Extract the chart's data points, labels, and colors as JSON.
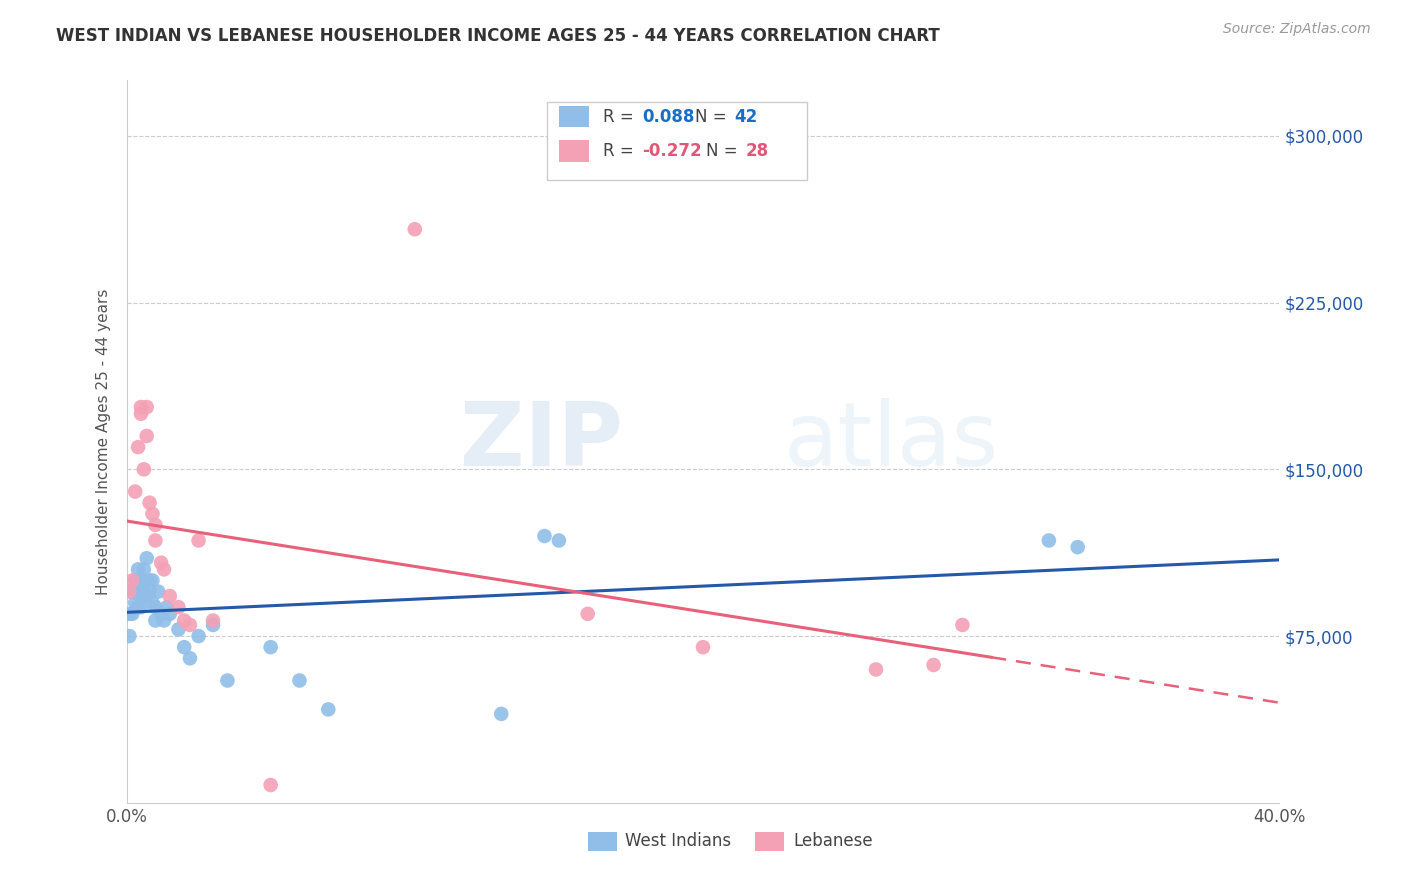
{
  "title": "WEST INDIAN VS LEBANESE HOUSEHOLDER INCOME AGES 25 - 44 YEARS CORRELATION CHART",
  "source": "Source: ZipAtlas.com",
  "ylabel": "Householder Income Ages 25 - 44 years",
  "legend_blue_label": "West Indians",
  "legend_pink_label": "Lebanese",
  "xmin": 0.0,
  "xmax": 0.4,
  "ymin": 0,
  "ymax": 325000,
  "yticks": [
    75000,
    150000,
    225000,
    300000
  ],
  "ytick_labels": [
    "$75,000",
    "$150,000",
    "$225,000",
    "$300,000"
  ],
  "watermark_zip": "ZIP",
  "watermark_atlas": "atlas",
  "blue_color": "#90BEE8",
  "pink_color": "#F4A0B5",
  "blue_line_color": "#2558A8",
  "pink_line_color": "#E8607A",
  "blue_r": "0.088",
  "blue_n": "42",
  "pink_r": "-0.272",
  "pink_n": "28",
  "west_indians_x": [
    0.001,
    0.001,
    0.002,
    0.002,
    0.003,
    0.003,
    0.004,
    0.004,
    0.004,
    0.005,
    0.005,
    0.005,
    0.006,
    0.006,
    0.007,
    0.007,
    0.007,
    0.008,
    0.008,
    0.009,
    0.009,
    0.01,
    0.01,
    0.011,
    0.012,
    0.013,
    0.014,
    0.015,
    0.018,
    0.02,
    0.022,
    0.025,
    0.03,
    0.035,
    0.05,
    0.06,
    0.07,
    0.13,
    0.145,
    0.15,
    0.32,
    0.33
  ],
  "west_indians_y": [
    85000,
    75000,
    95000,
    85000,
    90000,
    100000,
    105000,
    95000,
    88000,
    100000,
    93000,
    88000,
    105000,
    95000,
    110000,
    100000,
    93000,
    100000,
    95000,
    100000,
    90000,
    88000,
    82000,
    95000,
    85000,
    82000,
    88000,
    85000,
    78000,
    70000,
    65000,
    75000,
    80000,
    55000,
    70000,
    55000,
    42000,
    40000,
    120000,
    118000,
    118000,
    115000
  ],
  "lebanese_x": [
    0.001,
    0.002,
    0.003,
    0.004,
    0.005,
    0.005,
    0.006,
    0.007,
    0.007,
    0.008,
    0.009,
    0.01,
    0.01,
    0.012,
    0.013,
    0.015,
    0.018,
    0.02,
    0.022,
    0.025,
    0.03,
    0.05,
    0.1,
    0.16,
    0.2,
    0.26,
    0.28,
    0.29
  ],
  "lebanese_y": [
    95000,
    100000,
    140000,
    160000,
    178000,
    175000,
    150000,
    165000,
    178000,
    135000,
    130000,
    125000,
    118000,
    108000,
    105000,
    93000,
    88000,
    82000,
    80000,
    118000,
    82000,
    8000,
    258000,
    85000,
    70000,
    60000,
    62000,
    80000
  ]
}
